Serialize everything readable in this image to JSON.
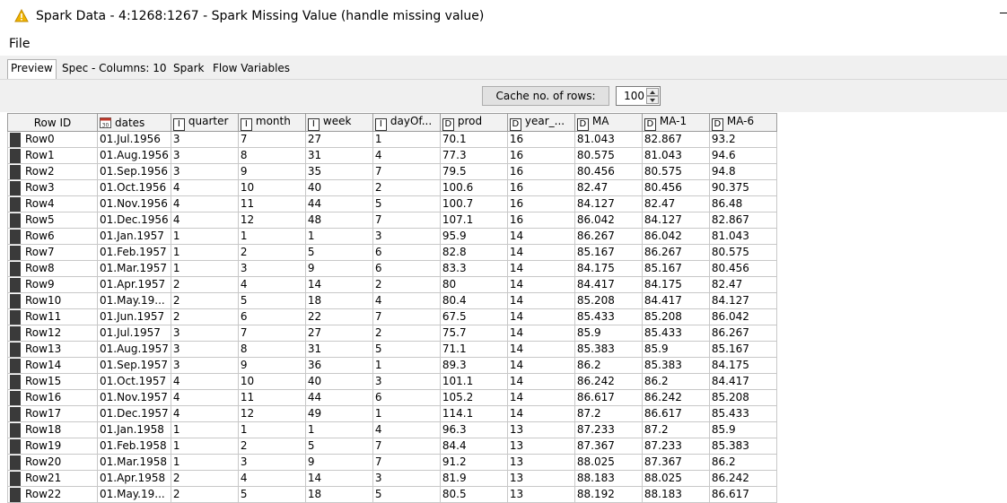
{
  "window": {
    "title": "Spark Data - 4:1268:1267 - Spark Missing Value (handle missing value)"
  },
  "menu": {
    "file": "File"
  },
  "tabs": [
    "Preview",
    "Spec - Columns: 10",
    "Spark",
    "Flow Variables"
  ],
  "toolbar": {
    "cache_label": "Cache no. of rows:",
    "cache_value": "100"
  },
  "table": {
    "columns": [
      {
        "name": "Row ID",
        "type": ""
      },
      {
        "name": "dates",
        "type": "date"
      },
      {
        "name": "quarter",
        "type": "I"
      },
      {
        "name": "month",
        "type": "I"
      },
      {
        "name": "week",
        "type": "I"
      },
      {
        "name": "dayOf...",
        "type": "I"
      },
      {
        "name": "prod",
        "type": "D"
      },
      {
        "name": "year_...",
        "type": "D"
      },
      {
        "name": "MA",
        "type": "D"
      },
      {
        "name": "MA-1",
        "type": "D"
      },
      {
        "name": "MA-6",
        "type": "D"
      }
    ],
    "rows": [
      [
        "Row0",
        "01.Jul.1956",
        "3",
        "7",
        "27",
        "1",
        "70.1",
        "16",
        "81.043",
        "82.867",
        "93.2"
      ],
      [
        "Row1",
        "01.Aug.1956",
        "3",
        "8",
        "31",
        "4",
        "77.3",
        "16",
        "80.575",
        "81.043",
        "94.6"
      ],
      [
        "Row2",
        "01.Sep.1956",
        "3",
        "9",
        "35",
        "7",
        "79.5",
        "16",
        "80.456",
        "80.575",
        "94.8"
      ],
      [
        "Row3",
        "01.Oct.1956",
        "4",
        "10",
        "40",
        "2",
        "100.6",
        "16",
        "82.47",
        "80.456",
        "90.375"
      ],
      [
        "Row4",
        "01.Nov.1956",
        "4",
        "11",
        "44",
        "5",
        "100.7",
        "16",
        "84.127",
        "82.47",
        "86.48"
      ],
      [
        "Row5",
        "01.Dec.1956",
        "4",
        "12",
        "48",
        "7",
        "107.1",
        "16",
        "86.042",
        "84.127",
        "82.867"
      ],
      [
        "Row6",
        "01.Jan.1957",
        "1",
        "1",
        "1",
        "3",
        "95.9",
        "14",
        "86.267",
        "86.042",
        "81.043"
      ],
      [
        "Row7",
        "01.Feb.1957",
        "1",
        "2",
        "5",
        "6",
        "82.8",
        "14",
        "85.167",
        "86.267",
        "80.575"
      ],
      [
        "Row8",
        "01.Mar.1957",
        "1",
        "3",
        "9",
        "6",
        "83.3",
        "14",
        "84.175",
        "85.167",
        "80.456"
      ],
      [
        "Row9",
        "01.Apr.1957",
        "2",
        "4",
        "14",
        "2",
        "80",
        "14",
        "84.417",
        "84.175",
        "82.47"
      ],
      [
        "Row10",
        "01.May.19...",
        "2",
        "5",
        "18",
        "4",
        "80.4",
        "14",
        "85.208",
        "84.417",
        "84.127"
      ],
      [
        "Row11",
        "01.Jun.1957",
        "2",
        "6",
        "22",
        "7",
        "67.5",
        "14",
        "85.433",
        "85.208",
        "86.042"
      ],
      [
        "Row12",
        "01.Jul.1957",
        "3",
        "7",
        "27",
        "2",
        "75.7",
        "14",
        "85.9",
        "85.433",
        "86.267"
      ],
      [
        "Row13",
        "01.Aug.1957",
        "3",
        "8",
        "31",
        "5",
        "71.1",
        "14",
        "85.383",
        "85.9",
        "85.167"
      ],
      [
        "Row14",
        "01.Sep.1957",
        "3",
        "9",
        "36",
        "1",
        "89.3",
        "14",
        "86.2",
        "85.383",
        "84.175"
      ],
      [
        "Row15",
        "01.Oct.1957",
        "4",
        "10",
        "40",
        "3",
        "101.1",
        "14",
        "86.242",
        "86.2",
        "84.417"
      ],
      [
        "Row16",
        "01.Nov.1957",
        "4",
        "11",
        "44",
        "6",
        "105.2",
        "14",
        "86.617",
        "86.242",
        "85.208"
      ],
      [
        "Row17",
        "01.Dec.1957",
        "4",
        "12",
        "49",
        "1",
        "114.1",
        "14",
        "87.2",
        "86.617",
        "85.433"
      ],
      [
        "Row18",
        "01.Jan.1958",
        "1",
        "1",
        "1",
        "4",
        "96.3",
        "13",
        "87.233",
        "87.2",
        "85.9"
      ],
      [
        "Row19",
        "01.Feb.1958",
        "1",
        "2",
        "5",
        "7",
        "84.4",
        "13",
        "87.367",
        "87.233",
        "85.383"
      ],
      [
        "Row20",
        "01.Mar.1958",
        "1",
        "3",
        "9",
        "7",
        "91.2",
        "13",
        "88.025",
        "87.367",
        "86.2"
      ],
      [
        "Row21",
        "01.Apr.1958",
        "2",
        "4",
        "14",
        "3",
        "81.9",
        "13",
        "88.183",
        "88.025",
        "86.242"
      ],
      [
        "Row22",
        "01.May.19...",
        "2",
        "5",
        "18",
        "5",
        "80.5",
        "13",
        "88.192",
        "88.183",
        "86.617"
      ]
    ]
  },
  "icons": {
    "warning": "warning-triangle-icon",
    "warning_color": "#f0b400",
    "date_type": "calendar-icon"
  }
}
